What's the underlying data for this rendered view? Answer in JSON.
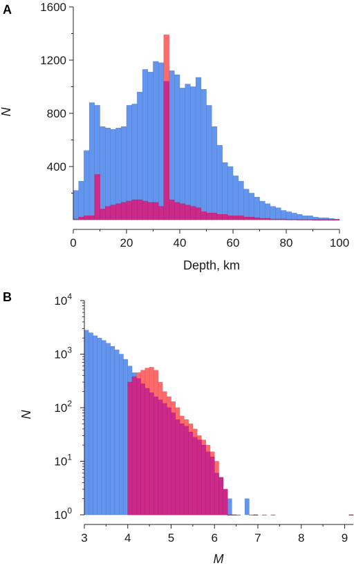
{
  "panels": [
    {
      "label": "A",
      "ylabel": "N",
      "xlabel": "Depth, km",
      "xticks": [
        "0",
        "20",
        "40",
        "60",
        "80",
        "100"
      ],
      "yticks": [
        "400",
        "800",
        "1200",
        "1600"
      ]
    },
    {
      "label": "B",
      "ylabel": "N",
      "xlabel": "M",
      "xticks": [
        "3",
        "4",
        "5",
        "6",
        "7",
        "8",
        "9"
      ],
      "yticks": [
        {
          "base": "10",
          "exp": "0"
        },
        {
          "base": "10",
          "exp": "1"
        },
        {
          "base": "10",
          "exp": "2"
        },
        {
          "base": "10",
          "exp": "3"
        },
        {
          "base": "10",
          "exp": "4"
        }
      ]
    }
  ],
  "chart_data": [
    {
      "type": "bar",
      "x_bin_start": 0,
      "bin_width": 2,
      "xlim": [
        0,
        100
      ],
      "ylim": [
        0,
        1600
      ],
      "colors": {
        "series_1": "#6495ed",
        "series_2": "#ff6b6b",
        "overlap": "#cc2a8a"
      },
      "series": [
        {
          "values": [
            220,
            290,
            520,
            880,
            860,
            700,
            690,
            680,
            690,
            700,
            860,
            870,
            960,
            1130,
            1110,
            1190,
            1180,
            1040,
            1120,
            1090,
            990,
            1020,
            1000,
            1070,
            980,
            860,
            700,
            560,
            430,
            400,
            330,
            290,
            230,
            200,
            170,
            140,
            120,
            100,
            90,
            70,
            60,
            50,
            40,
            30,
            30,
            20,
            15,
            15,
            10,
            5
          ]
        },
        {
          "values": [
            5,
            20,
            30,
            30,
            340,
            80,
            100,
            110,
            120,
            130,
            140,
            150,
            150,
            140,
            130,
            130,
            100,
            1390,
            150,
            130,
            120,
            110,
            100,
            90,
            60,
            50,
            50,
            40,
            40,
            30,
            30,
            30,
            20,
            20,
            15,
            10,
            10,
            5,
            5,
            5,
            3,
            3,
            2,
            2,
            2,
            1,
            1,
            1,
            1,
            1
          ]
        }
      ]
    },
    {
      "type": "bar",
      "yscale": "log",
      "x_bin_start": 3,
      "bin_width": 0.1,
      "xlim": [
        3,
        9.2
      ],
      "ylim": [
        1,
        10000
      ],
      "colors": {
        "series_1": "#6495ed",
        "series_2": "#ff6b6b",
        "overlap": "#cc2a8a"
      },
      "series": [
        {
          "values": [
            2800,
            2500,
            2200,
            2000,
            1800,
            1600,
            1400,
            1200,
            1000,
            800,
            600,
            450,
            350,
            280,
            230,
            190,
            160,
            140,
            120,
            100,
            80,
            60,
            50,
            45,
            35,
            28,
            25,
            20,
            15,
            12,
            6,
            5,
            3,
            2,
            1,
            0,
            0,
            2,
            0,
            1,
            0,
            0,
            0,
            0,
            0,
            0,
            0,
            0,
            0,
            0,
            0,
            0,
            0,
            0,
            0,
            0,
            0,
            0,
            0,
            0,
            0,
            1
          ]
        },
        {
          "values": [
            0,
            0,
            0,
            0,
            0,
            0,
            0,
            0,
            0,
            0,
            300,
            380,
            450,
            500,
            550,
            570,
            500,
            300,
            200,
            160,
            130,
            100,
            70,
            60,
            50,
            40,
            30,
            25,
            20,
            15,
            10,
            5,
            3,
            1,
            1,
            1,
            0,
            0,
            1,
            1,
            0,
            1,
            0,
            1,
            0,
            0,
            0,
            0,
            0,
            0,
            0,
            0,
            0,
            0,
            0,
            0,
            0,
            0,
            0,
            0,
            0,
            1
          ]
        }
      ]
    }
  ]
}
